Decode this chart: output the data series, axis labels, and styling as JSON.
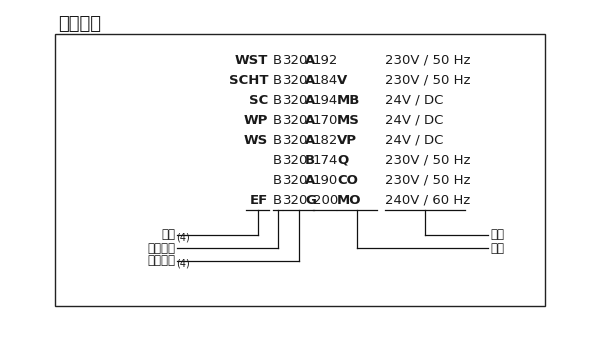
{
  "title": "订购示例",
  "title_fontsize": 13,
  "background_color": "#ffffff",
  "box_color": "#000000",
  "text_color": "#1a1a1a",
  "lines": [
    {
      "prefix": "WST",
      "mid_bold_char": "A",
      "num": "192",
      "suffix": "",
      "suffix_bold": false,
      "voltage": "230V / 50 Hz"
    },
    {
      "prefix": "SCHT",
      "mid_bold_char": "A",
      "num": "184",
      "suffix": "V",
      "suffix_bold": true,
      "voltage": "230V / 50 Hz"
    },
    {
      "prefix": "SC",
      "mid_bold_char": "A",
      "num": "194",
      "suffix": "MB",
      "suffix_bold": true,
      "voltage": "24V / DC"
    },
    {
      "prefix": "WP",
      "mid_bold_char": "A",
      "num": "170",
      "suffix": "MS",
      "suffix_bold": true,
      "voltage": "24V / DC"
    },
    {
      "prefix": "WS",
      "mid_bold_char": "A",
      "num": "182",
      "suffix": "VP",
      "suffix_bold": true,
      "voltage": "24V / DC"
    },
    {
      "prefix": "",
      "mid_bold_char": "B",
      "num": "174",
      "suffix": "Q",
      "suffix_bold": true,
      "voltage": "230V / 50 Hz"
    },
    {
      "prefix": "",
      "mid_bold_char": "A",
      "num": "190",
      "suffix": "CO",
      "suffix_bold": true,
      "voltage": "230V / 50 Hz"
    },
    {
      "prefix": "EF",
      "mid_bold_char": "G",
      "num": "200",
      "suffix": "MO",
      "suffix_bold": true,
      "voltage": "240V / 60 Hz"
    }
  ],
  "font_size_lines": 9.5,
  "font_size_labels": 8.5,
  "font_size_title": 13
}
